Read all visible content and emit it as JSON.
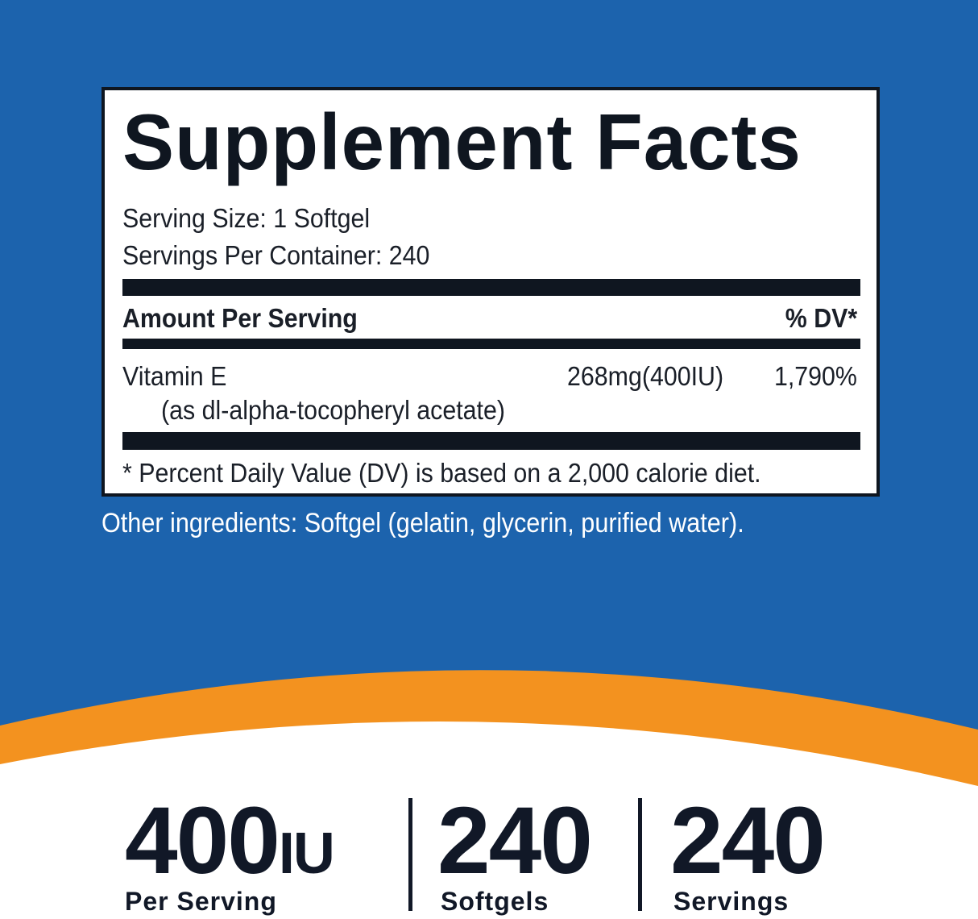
{
  "colors": {
    "background": "#1c63ad",
    "accent": "#f3921f",
    "text": "#111827"
  },
  "facts": {
    "title": "Supplement Facts",
    "serving_size": "Serving Size: 1 Softgel",
    "servings_per_container": "Servings Per Container: 240",
    "amount_header": "Amount Per Serving",
    "dv_header": "% DV*",
    "nutrient_name": "Vitamin E",
    "nutrient_form": "(as dl-alpha-tocopheryl acetate)",
    "nutrient_amount": "268mg(400IU)",
    "nutrient_dv": "1,790%",
    "footnote": "* Percent Daily Value (DV) is based on a 2,000 calorie diet."
  },
  "other_ingredients": "Other ingredients: Softgel (gelatin, glycerin, purified water).",
  "stats": [
    {
      "value": "400",
      "unit": "IU",
      "label": "Per Serving"
    },
    {
      "value": "240",
      "label": "Softgels"
    },
    {
      "value": "240",
      "label": "Servings"
    }
  ]
}
